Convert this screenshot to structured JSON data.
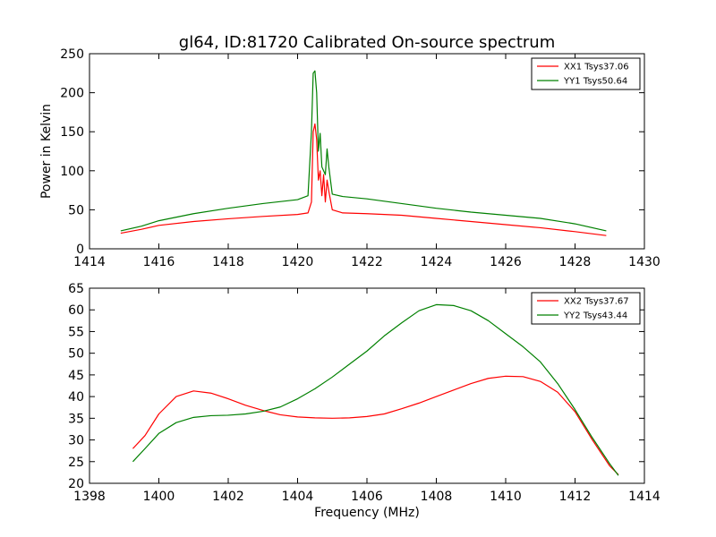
{
  "chart_data": [
    {
      "type": "line",
      "title": "gl64, ID:81720 Calibrated On-source spectrum",
      "xlabel": "",
      "ylabel": "Power in Kelvin",
      "xlim": [
        1414,
        1430
      ],
      "ylim": [
        0,
        250
      ],
      "xticks": [
        1414,
        1416,
        1418,
        1420,
        1422,
        1424,
        1426,
        1428,
        1430
      ],
      "yticks": [
        0,
        50,
        100,
        150,
        200,
        250
      ],
      "legend_position": "upper right",
      "series": [
        {
          "name": "XX1 Tsys37.06",
          "color": "#ff0000",
          "points": [
            [
              1414.9,
              20
            ],
            [
              1415.5,
              25
            ],
            [
              1416,
              30
            ],
            [
              1417,
              35
            ],
            [
              1418,
              38.5
            ],
            [
              1419,
              41.5
            ],
            [
              1420,
              44
            ],
            [
              1420.3,
              46
            ],
            [
              1420.4,
              60
            ],
            [
              1420.45,
              150
            ],
            [
              1420.5,
              160
            ],
            [
              1420.55,
              140
            ],
            [
              1420.6,
              88
            ],
            [
              1420.65,
              100
            ],
            [
              1420.7,
              68
            ],
            [
              1420.75,
              95
            ],
            [
              1420.8,
              60
            ],
            [
              1420.85,
              88
            ],
            [
              1420.9,
              74
            ],
            [
              1421.0,
              50
            ],
            [
              1421.3,
              46
            ],
            [
              1422,
              45
            ],
            [
              1423,
              43
            ],
            [
              1424,
              39
            ],
            [
              1425,
              35
            ],
            [
              1426,
              31
            ],
            [
              1427,
              27
            ],
            [
              1428,
              22
            ],
            [
              1428.9,
              17
            ]
          ]
        },
        {
          "name": "YY1 Tsys50.64",
          "color": "#008000",
          "points": [
            [
              1414.9,
              23
            ],
            [
              1415.5,
              29
            ],
            [
              1416,
              36
            ],
            [
              1417,
              45
            ],
            [
              1418,
              52
            ],
            [
              1419,
              58
            ],
            [
              1420,
              63
            ],
            [
              1420.3,
              68
            ],
            [
              1420.4,
              150
            ],
            [
              1420.45,
              225
            ],
            [
              1420.5,
              228
            ],
            [
              1420.55,
              200
            ],
            [
              1420.6,
              125
            ],
            [
              1420.65,
              148
            ],
            [
              1420.7,
              105
            ],
            [
              1420.75,
              100
            ],
            [
              1420.8,
              95
            ],
            [
              1420.85,
              128
            ],
            [
              1420.9,
              105
            ],
            [
              1421.0,
              70
            ],
            [
              1421.3,
              67
            ],
            [
              1422,
              64
            ],
            [
              1423,
              58
            ],
            [
              1424,
              52
            ],
            [
              1425,
              47
            ],
            [
              1426,
              43
            ],
            [
              1427,
              39
            ],
            [
              1428,
              32
            ],
            [
              1428.9,
              23
            ]
          ]
        }
      ]
    },
    {
      "type": "line",
      "title": "",
      "xlabel": "Frequency (MHz)",
      "ylabel": "",
      "xlim": [
        1398,
        1414
      ],
      "ylim": [
        20,
        65
      ],
      "xticks": [
        1398,
        1400,
        1402,
        1404,
        1406,
        1408,
        1410,
        1412,
        1414
      ],
      "yticks": [
        20,
        25,
        30,
        35,
        40,
        45,
        50,
        55,
        60,
        65
      ],
      "legend_position": "upper right",
      "series": [
        {
          "name": "XX2 Tsys37.67",
          "color": "#ff0000",
          "points": [
            [
              1399.25,
              28
            ],
            [
              1399.6,
              31
            ],
            [
              1400,
              36
            ],
            [
              1400.5,
              40
            ],
            [
              1401,
              41.3
            ],
            [
              1401.5,
              40.8
            ],
            [
              1402,
              39.5
            ],
            [
              1402.5,
              38
            ],
            [
              1403,
              36.8
            ],
            [
              1403.5,
              35.8
            ],
            [
              1404,
              35.3
            ],
            [
              1404.5,
              35.1
            ],
            [
              1405,
              35
            ],
            [
              1405.5,
              35.1
            ],
            [
              1406,
              35.4
            ],
            [
              1406.5,
              36
            ],
            [
              1407,
              37.2
            ],
            [
              1407.5,
              38.5
            ],
            [
              1408,
              40
            ],
            [
              1408.5,
              41.5
            ],
            [
              1409,
              43
            ],
            [
              1409.5,
              44.2
            ],
            [
              1410,
              44.7
            ],
            [
              1410.5,
              44.6
            ],
            [
              1411,
              43.5
            ],
            [
              1411.5,
              41
            ],
            [
              1412,
              36.5
            ],
            [
              1412.5,
              30
            ],
            [
              1413,
              24
            ],
            [
              1413.25,
              22
            ]
          ]
        },
        {
          "name": "YY2 Tsys43.44",
          "color": "#008000",
          "points": [
            [
              1399.25,
              25
            ],
            [
              1399.6,
              28
            ],
            [
              1400,
              31.5
            ],
            [
              1400.5,
              34
            ],
            [
              1401,
              35.2
            ],
            [
              1401.5,
              35.6
            ],
            [
              1402,
              35.7
            ],
            [
              1402.5,
              36
            ],
            [
              1403,
              36.6
            ],
            [
              1403.5,
              37.6
            ],
            [
              1404,
              39.5
            ],
            [
              1404.5,
              41.8
            ],
            [
              1405,
              44.5
            ],
            [
              1405.5,
              47.5
            ],
            [
              1406,
              50.5
            ],
            [
              1406.5,
              54
            ],
            [
              1407,
              57
            ],
            [
              1407.5,
              59.8
            ],
            [
              1408,
              61.2
            ],
            [
              1408.5,
              61
            ],
            [
              1409,
              59.8
            ],
            [
              1409.5,
              57.5
            ],
            [
              1410,
              54.5
            ],
            [
              1410.5,
              51.5
            ],
            [
              1411,
              48
            ],
            [
              1411.5,
              43
            ],
            [
              1412,
              37
            ],
            [
              1412.5,
              30.5
            ],
            [
              1413,
              24.5
            ],
            [
              1413.25,
              21.8
            ]
          ]
        }
      ]
    }
  ]
}
